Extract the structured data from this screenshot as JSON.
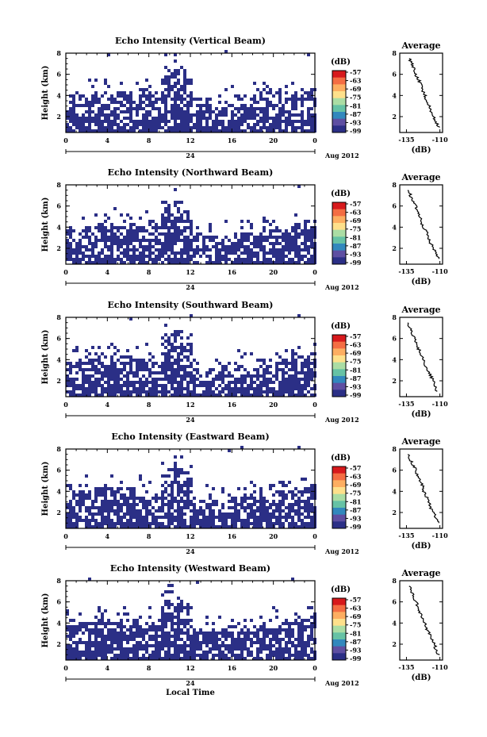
{
  "chart_data": [
    {
      "type": "heatmap",
      "title": "Echo Intensity (Vertical Beam)",
      "ylabel": "Height (km)",
      "x_ticks": [
        "0",
        "4",
        "8",
        "12",
        "16",
        "20",
        "0"
      ],
      "y_ticks": [
        "2",
        "4",
        "6",
        "8"
      ],
      "day_label": "24",
      "date_label": "Aug 2012",
      "xlim": [
        0,
        24
      ],
      "ylim": [
        0.5,
        8
      ],
      "colorbar": {
        "unit": "(dB)",
        "ticks": [
          "-57",
          "-63",
          "-69",
          "-75",
          "-81",
          "-87",
          "-93",
          "-99"
        ]
      },
      "average": {
        "title": "Average",
        "xlabel": "(dB)",
        "x_ticks": [
          "-135",
          "-110"
        ],
        "y_ticks": [
          "2",
          "4",
          "6",
          "8"
        ],
        "xlim": [
          -140,
          -108
        ],
        "ylim": [
          0.5,
          8
        ],
        "height": [
          1.0,
          1.5,
          2.0,
          2.5,
          3.0,
          3.5,
          4.0,
          4.5,
          5.0,
          5.5,
          6.0,
          6.5,
          7.0,
          7.5
        ],
        "db": [
          -111,
          -113,
          -115,
          -117,
          -118,
          -120,
          -121,
          -123,
          -124,
          -126,
          -128,
          -129,
          -131,
          -133
        ]
      }
    },
    {
      "type": "heatmap",
      "title": "Echo Intensity (Northward Beam)",
      "ylabel": "Height (km)",
      "x_ticks": [
        "0",
        "4",
        "8",
        "12",
        "16",
        "20",
        "0"
      ],
      "y_ticks": [
        "2",
        "4",
        "6",
        "8"
      ],
      "day_label": "24",
      "date_label": "Aug 2012",
      "xlim": [
        0,
        24
      ],
      "ylim": [
        0.5,
        8
      ],
      "colorbar": {
        "unit": "(dB)",
        "ticks": [
          "-57",
          "-63",
          "-69",
          "-75",
          "-81",
          "-87",
          "-93",
          "-99"
        ]
      },
      "average": {
        "title": "Average",
        "xlabel": "(dB)",
        "x_ticks": [
          "-135",
          "-110"
        ],
        "y_ticks": [
          "2",
          "4",
          "6",
          "8"
        ],
        "xlim": [
          -140,
          -108
        ],
        "ylim": [
          0.5,
          8
        ],
        "height": [
          1.0,
          1.5,
          2.0,
          2.5,
          3.0,
          3.5,
          4.0,
          4.5,
          5.0,
          5.5,
          6.0,
          6.5,
          7.0,
          7.5
        ],
        "db": [
          -111,
          -113,
          -115,
          -117,
          -119,
          -120,
          -122,
          -124,
          -125,
          -127,
          -128,
          -130,
          -132,
          -134
        ]
      }
    },
    {
      "type": "heatmap",
      "title": "Echo Intensity (Southward Beam)",
      "ylabel": "Height (km)",
      "x_ticks": [
        "0",
        "4",
        "8",
        "12",
        "16",
        "20",
        "0"
      ],
      "y_ticks": [
        "2",
        "4",
        "6",
        "8"
      ],
      "day_label": "24",
      "date_label": "Aug 2012",
      "xlim": [
        0,
        24
      ],
      "ylim": [
        0.5,
        8
      ],
      "colorbar": {
        "unit": "(dB)",
        "ticks": [
          "-57",
          "-63",
          "-69",
          "-75",
          "-81",
          "-87",
          "-93",
          "-99"
        ]
      },
      "average": {
        "title": "Average",
        "xlabel": "(dB)",
        "x_ticks": [
          "-135",
          "-110"
        ],
        "y_ticks": [
          "2",
          "4",
          "6",
          "8"
        ],
        "xlim": [
          -140,
          -108
        ],
        "ylim": [
          0.5,
          8
        ],
        "height": [
          1.0,
          1.5,
          2.0,
          2.5,
          3.0,
          3.5,
          4.0,
          4.5,
          5.0,
          5.5,
          6.0,
          6.5,
          7.0,
          7.5
        ],
        "db": [
          -112,
          -114,
          -115,
          -117,
          -119,
          -121,
          -122,
          -124,
          -126,
          -127,
          -129,
          -131,
          -132,
          -134
        ]
      }
    },
    {
      "type": "heatmap",
      "title": "Echo Intensity (Eastward Beam)",
      "ylabel": "Height (km)",
      "x_ticks": [
        "0",
        "4",
        "8",
        "12",
        "16",
        "20",
        "0"
      ],
      "y_ticks": [
        "2",
        "4",
        "6",
        "8"
      ],
      "day_label": "24",
      "date_label": "Aug 2012",
      "xlim": [
        0,
        24
      ],
      "ylim": [
        0.5,
        8
      ],
      "colorbar": {
        "unit": "(dB)",
        "ticks": [
          "-57",
          "-63",
          "-69",
          "-75",
          "-81",
          "-87",
          "-93",
          "-99"
        ]
      },
      "average": {
        "title": "Average",
        "xlabel": "(dB)",
        "x_ticks": [
          "-135",
          "-110"
        ],
        "y_ticks": [
          "2",
          "4",
          "6",
          "8"
        ],
        "xlim": [
          -140,
          -108
        ],
        "ylim": [
          0.5,
          8
        ],
        "height": [
          1.0,
          1.5,
          2.0,
          2.5,
          3.0,
          3.5,
          4.0,
          4.5,
          5.0,
          5.5,
          6.0,
          6.5,
          7.0,
          7.5
        ],
        "db": [
          -111,
          -113,
          -115,
          -117,
          -118,
          -120,
          -122,
          -123,
          -125,
          -127,
          -128,
          -130,
          -132,
          -134
        ]
      }
    },
    {
      "type": "heatmap",
      "title": "Echo Intensity (Westward Beam)",
      "ylabel": "Height (km)",
      "x_ticks": [
        "0",
        "4",
        "8",
        "12",
        "16",
        "20",
        "0"
      ],
      "y_ticks": [
        "2",
        "4",
        "6",
        "8"
      ],
      "day_label": "24",
      "date_label": "Aug 2012",
      "xlabel": "Local Time",
      "xlim": [
        0,
        24
      ],
      "ylim": [
        0.5,
        8
      ],
      "colorbar": {
        "unit": "(dB)",
        "ticks": [
          "-57",
          "-63",
          "-69",
          "-75",
          "-81",
          "-87",
          "-93",
          "-99"
        ]
      },
      "average": {
        "title": "Average",
        "xlabel": "(dB)",
        "x_ticks": [
          "-135",
          "-110"
        ],
        "y_ticks": [
          "2",
          "4",
          "6",
          "8"
        ],
        "xlim": [
          -140,
          -108
        ],
        "ylim": [
          0.5,
          8
        ],
        "height": [
          1.0,
          1.5,
          2.0,
          2.5,
          3.0,
          3.5,
          4.0,
          4.5,
          5.0,
          5.5,
          6.0,
          6.5,
          7.0,
          7.5
        ],
        "db": [
          -111,
          -113,
          -114,
          -116,
          -118,
          -120,
          -121,
          -123,
          -125,
          -126,
          -128,
          -130,
          -131,
          -133
        ]
      }
    }
  ],
  "colors": {
    "echo_fill": "#2b2f86",
    "colorbar": [
      "#d7191c",
      "#f46d43",
      "#fdae61",
      "#fee08b",
      "#abdda4",
      "#66c2a5",
      "#3288bd",
      "#5e4fa2",
      "#2b2f86"
    ]
  }
}
